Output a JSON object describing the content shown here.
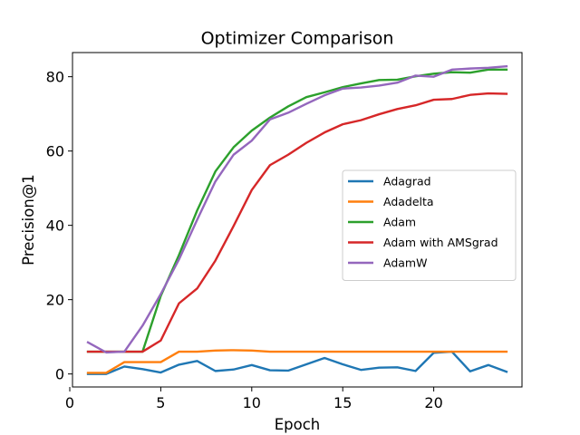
{
  "chart_data": {
    "type": "line",
    "title": "Optimizer Comparison",
    "xlabel": "Epoch",
    "ylabel": "Precision@1",
    "xlim": [
      0.15,
      24.85
    ],
    "ylim": [
      -3.5,
      86.5
    ],
    "xticks": [
      0,
      5,
      10,
      15,
      20
    ],
    "yticks": [
      0,
      20,
      40,
      60,
      80
    ],
    "grid": false,
    "legend_placement": "center-right",
    "x": [
      1,
      2,
      3,
      4,
      5,
      6,
      7,
      8,
      9,
      10,
      11,
      12,
      13,
      14,
      15,
      16,
      17,
      18,
      19,
      20,
      21,
      22,
      23,
      24
    ],
    "series": [
      {
        "name": "Adagrad",
        "color": "#1f77b4",
        "values": [
          0.0,
          0.0,
          2.0,
          1.3,
          0.4,
          2.5,
          3.5,
          0.8,
          1.2,
          2.4,
          1.0,
          0.9,
          2.6,
          4.3,
          2.6,
          1.1,
          1.7,
          1.8,
          0.8,
          5.7,
          6.0,
          0.7,
          2.4,
          0.6
        ]
      },
      {
        "name": "Adadelta",
        "color": "#ff7f0e",
        "values": [
          0.3,
          0.3,
          3.2,
          3.2,
          3.2,
          6.0,
          6.0,
          6.3,
          6.4,
          6.3,
          6.0,
          6.0,
          6.0,
          6.0,
          6.0,
          6.0,
          6.0,
          6.0,
          6.0,
          6.0,
          6.0,
          6.0,
          6.0,
          6.0
        ]
      },
      {
        "name": "Adam",
        "color": "#2ca02c",
        "values": [
          6.0,
          6.0,
          6.0,
          6.0,
          21.0,
          32.0,
          44.0,
          54.5,
          61.0,
          65.5,
          69.0,
          72.0,
          74.5,
          75.8,
          77.2,
          78.2,
          79.1,
          79.2,
          80.1,
          80.8,
          81.2,
          81.1,
          81.9,
          81.9
        ]
      },
      {
        "name": "Adam with AMSgrad",
        "color": "#d62728",
        "values": [
          6.0,
          6.0,
          6.0,
          6.0,
          9.0,
          19.0,
          23.0,
          30.5,
          39.8,
          49.5,
          56.2,
          59.0,
          62.2,
          65.0,
          67.2,
          68.3,
          69.9,
          71.3,
          72.3,
          73.8,
          74.0,
          75.1,
          75.5,
          75.4
        ]
      },
      {
        "name": "AdamW",
        "color": "#9467bd",
        "values": [
          8.5,
          5.8,
          6.0,
          13.0,
          21.5,
          30.8,
          41.5,
          51.8,
          59.0,
          62.8,
          68.5,
          70.3,
          72.7,
          75.0,
          76.8,
          77.1,
          77.6,
          78.4,
          80.3,
          80.0,
          81.9,
          82.2,
          82.4,
          82.8
        ]
      }
    ]
  }
}
